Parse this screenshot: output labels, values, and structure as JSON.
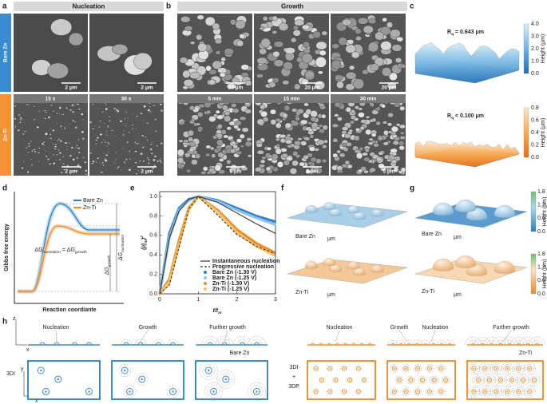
{
  "panel_a": {
    "label": "a",
    "header": "Nucleation",
    "row_labels": [
      "Bare Zn",
      "Zn-Ti"
    ],
    "times": [
      "15 s",
      "30 s"
    ],
    "scale_bar": "2 μm"
  },
  "panel_b": {
    "label": "b",
    "header": "Growth",
    "times": [
      "5 min",
      "15 min",
      "30 min"
    ],
    "scale_bars": [
      "20 μm",
      "5 μm"
    ]
  },
  "panel_c": {
    "label": "c",
    "roughness": [
      {
        "symbol": "R",
        "sub": "q",
        "text": " = 0.643 μm"
      },
      {
        "symbol": "R",
        "sub": "q",
        "text": " < 0.100 μm"
      }
    ],
    "colorbar_ticks": [
      [
        "0.0",
        "1.0",
        "2.0",
        "3.0",
        "4.0"
      ],
      [
        "0.0",
        "0.2",
        "0.4",
        "0.6",
        "0.8"
      ]
    ],
    "colorbar_label": "Height (μm)"
  },
  "panel_d": {
    "label": "d",
    "y_label": "Gibbs free energy",
    "x_label": "Reaction coordiante",
    "legend": [
      "Bare Zn",
      "Zn-Ti"
    ],
    "equality": {
      "left": "ΔG",
      "left_sub": "nucleation",
      "sign": " = ",
      "right": "ΔG",
      "right_sub": "growth"
    },
    "barriers": [
      {
        "text": "ΔG",
        "sub": "nucleation"
      },
      {
        "text": "ΔG",
        "sub": "growth"
      }
    ]
  },
  "panel_f": {
    "label": "f",
    "samples": [
      "Bare Zn",
      "Zn-Ti"
    ],
    "unit": "μm"
  },
  "panel_g": {
    "label": "g",
    "samples": [
      "Bare Zn",
      "Zn-Ti"
    ],
    "unit": "μm",
    "colorbar_ticks": [
      "0.0",
      "0.6",
      "1.2",
      "1.8"
    ],
    "colorbar_label": "Height (μm)"
  },
  "panel_h": {
    "label": "h",
    "axes": [
      "z",
      "x",
      "y",
      "x"
    ],
    "left": {
      "stages": [
        "Nucleation",
        "Growth",
        "Further growth"
      ],
      "sample": "Bare Zn",
      "mode": "3DI"
    },
    "right": {
      "stages": [
        "Nucleation",
        "Growth",
        "Nucleation",
        "Further growth"
      ],
      "sample": "Zn-Ti",
      "mode": [
        "3DI",
        "+",
        "3DP"
      ]
    }
  },
  "chart_data": {
    "type": "line",
    "label": "e",
    "x_label": {
      "text": "t/t",
      "sub": "m"
    },
    "y_label": {
      "text": "(j/j",
      "sub": "m",
      "close": ")",
      "sup": "2"
    },
    "x": [
      0,
      0.25,
      0.5,
      0.75,
      1,
      1.5,
      2,
      2.5,
      3
    ],
    "xlim": [
      0,
      3
    ],
    "ylim": [
      0,
      1.05
    ],
    "xticks": [
      0,
      1,
      2,
      3
    ],
    "yticks": [
      {
        "value": 0,
        "label": "0.0"
      },
      0.2,
      0.4,
      0.6,
      0.8,
      {
        "value": 1,
        "label": "1.0"
      }
    ],
    "series": [
      {
        "name": "Instantaneous nucleation",
        "color": "#333333",
        "style": "solid",
        "values": [
          0,
          0.57,
          0.85,
          0.97,
          1.0,
          0.94,
          0.83,
          0.72,
          0.62
        ]
      },
      {
        "name": "Progressive nucleation",
        "color": "#333333",
        "style": "dashed",
        "values": [
          0,
          0.09,
          0.48,
          0.87,
          1.0,
          0.81,
          0.61,
          0.49,
          0.41
        ]
      },
      {
        "name": "Bare Zn (-1.30 V)",
        "color": "#2f7fc1",
        "style": "markers",
        "values": [
          0,
          0.62,
          0.88,
          0.97,
          1.0,
          0.96,
          0.88,
          0.8,
          0.74
        ]
      },
      {
        "name": "Bare Zn (-1.25 V)",
        "color": "#8fc3ea",
        "style": "markers",
        "values": [
          0,
          0.58,
          0.86,
          0.96,
          1.0,
          0.95,
          0.86,
          0.78,
          0.71
        ]
      },
      {
        "name": "Zn-Ti (-1.30 V)",
        "color": "#f08a24",
        "style": "markers",
        "values": [
          0,
          0.15,
          0.55,
          0.88,
          1.0,
          0.86,
          0.66,
          0.52,
          0.42
        ]
      },
      {
        "name": "Zn-Ti (-1.25 V)",
        "color": "#f7c46a",
        "style": "markers",
        "values": [
          0,
          0.12,
          0.5,
          0.86,
          1.0,
          0.84,
          0.63,
          0.49,
          0.39
        ]
      }
    ]
  }
}
